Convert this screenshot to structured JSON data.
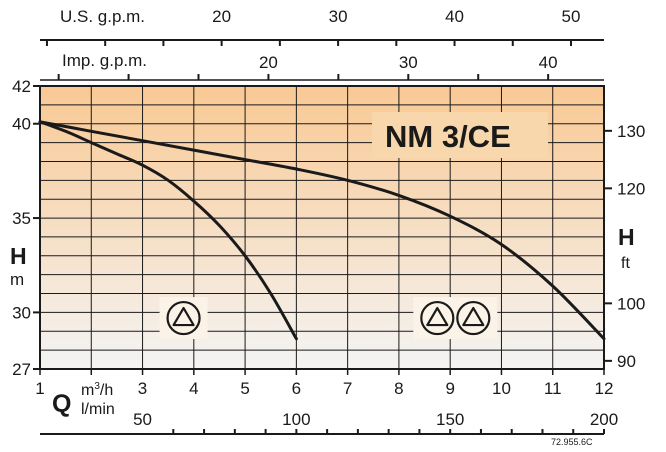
{
  "chart_data": {
    "type": "line",
    "title": "NM 3/CE",
    "x_primary": {
      "unit_symbol": "Q",
      "unit_label": "m³/h",
      "range": [
        1,
        12
      ],
      "ticks": [
        1,
        2,
        3,
        4,
        5,
        6,
        7,
        8,
        9,
        10,
        11,
        12
      ],
      "tick_labels": [
        "1",
        "",
        "3",
        "4",
        "5",
        "6",
        "7",
        "8",
        "9",
        "10",
        "11",
        "12"
      ]
    },
    "x_lmin": {
      "label": "l/min",
      "ticks": [
        50,
        100,
        150,
        200
      ]
    },
    "x_us_gpm": {
      "label": "U.S. g.p.m.",
      "ticks": [
        20,
        30,
        40,
        50
      ]
    },
    "x_imp_gpm": {
      "label": "Imp. g.p.m.",
      "ticks": [
        20,
        30,
        40
      ]
    },
    "y_primary": {
      "symbol": "H",
      "unit": "m",
      "range": [
        27,
        42
      ],
      "ticks": [
        27,
        30,
        35,
        40,
        42
      ],
      "grid_step": 1
    },
    "y_secondary": {
      "symbol": "H",
      "unit": "ft",
      "ticks": [
        90,
        100,
        120,
        130
      ]
    },
    "series": [
      {
        "x": [
          1,
          1.5,
          2,
          2.5,
          3,
          3.5,
          4,
          4.5,
          5,
          5.5,
          6
        ],
        "y": [
          40.1,
          39.6,
          39.0,
          38.4,
          37.8,
          37.0,
          35.9,
          34.6,
          33.0,
          31.0,
          28.6
        ]
      },
      {
        "x": [
          1,
          2,
          3,
          4,
          5,
          6,
          7,
          8,
          9,
          10,
          11,
          12
        ],
        "y": [
          40.1,
          39.6,
          39.1,
          38.6,
          38.1,
          37.6,
          37.0,
          36.2,
          35.1,
          33.6,
          31.4,
          28.6
        ]
      }
    ],
    "pump_symbols": [
      {
        "count": 1,
        "near_x": 3.8
      },
      {
        "count": 2,
        "near_x": 9.1
      }
    ],
    "grid": true,
    "reference_code": "72.955.6C"
  },
  "colors": {
    "band_top": "#f9c994",
    "band_bottom": "#f4f4f4",
    "grid": "#1a1a1a",
    "curve": "#1a1a1a"
  }
}
